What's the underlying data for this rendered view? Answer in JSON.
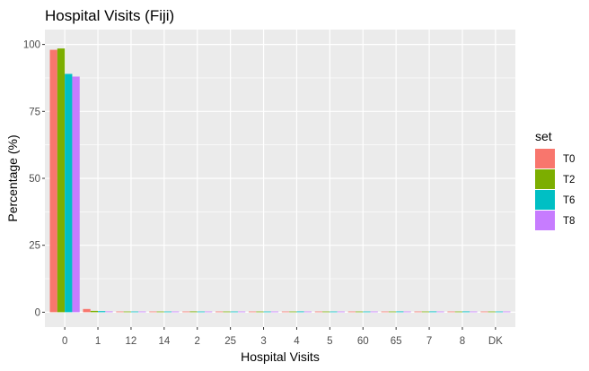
{
  "chart_data": {
    "type": "bar",
    "title": "Hospital Visits (Fiji)",
    "xlabel": "Hospital Visits",
    "ylabel": "Percentage (%)",
    "categories": [
      "0",
      "1",
      "12",
      "14",
      "2",
      "25",
      "3",
      "4",
      "5",
      "60",
      "65",
      "7",
      "8",
      "DK"
    ],
    "ylim": [
      0,
      100
    ],
    "yticks": [
      "0",
      "25",
      "50",
      "75",
      "100"
    ],
    "grid": true,
    "legend": {
      "title": "set",
      "placement": "right"
    },
    "series": [
      {
        "name": "T0",
        "color": "#F8766D",
        "values": [
          98.0,
          1.2,
          0.2,
          0.2,
          0.2,
          0.1,
          0.1,
          0.1,
          0.1,
          0.1,
          0.1,
          0.1,
          0.1,
          0.2
        ]
      },
      {
        "name": "T2",
        "color": "#7CAE00",
        "values": [
          98.5,
          0.5,
          0.2,
          0.2,
          0.3,
          0.1,
          0.1,
          0.1,
          0.1,
          0.1,
          0.1,
          0.1,
          0.1,
          0.1
        ]
      },
      {
        "name": "T6",
        "color": "#00BFC4",
        "values": [
          89.0,
          0.4,
          0.1,
          0.1,
          0.2,
          0.1,
          0.1,
          0.3,
          0.1,
          0.1,
          0.3,
          0.3,
          0.3,
          0.1
        ]
      },
      {
        "name": "T8",
        "color": "#C77CFF",
        "values": [
          88.0,
          0.3,
          0.1,
          0.1,
          0.2,
          0.1,
          0.1,
          0.1,
          0.2,
          0.1,
          0.1,
          0.1,
          0.1,
          0.1
        ]
      }
    ]
  }
}
